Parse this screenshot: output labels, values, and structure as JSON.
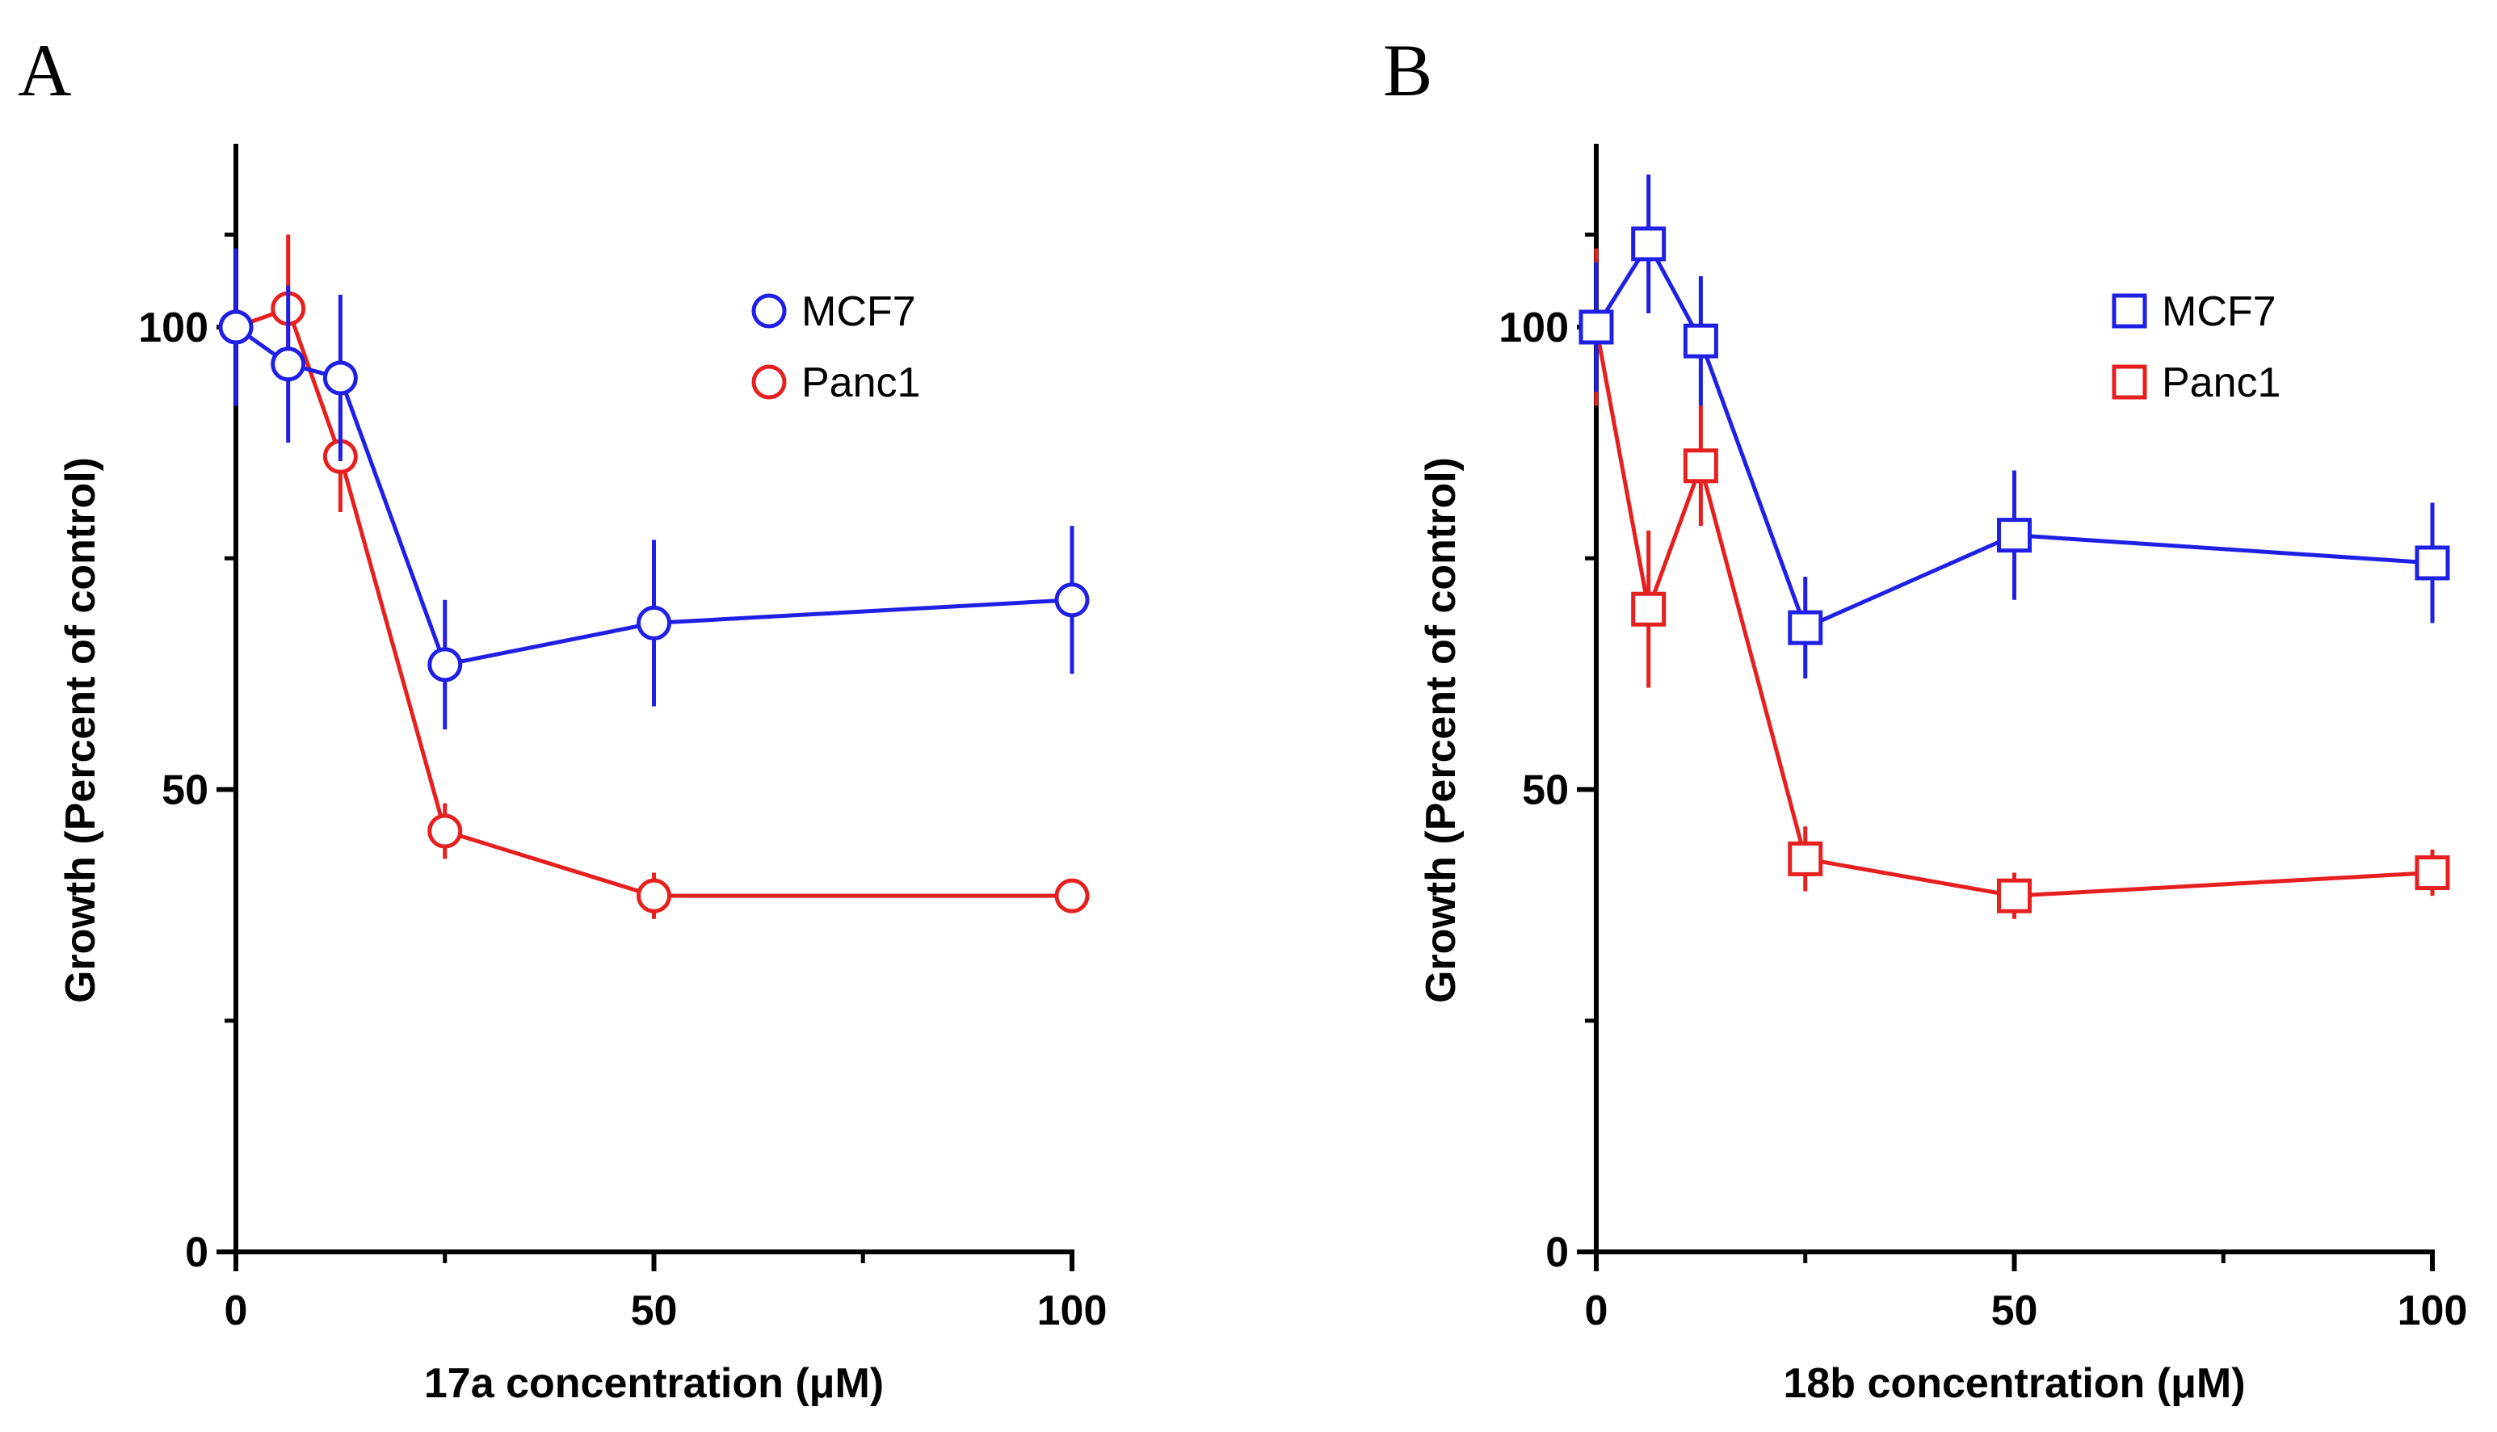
{
  "chart_data": [
    {
      "panel": "A",
      "type": "line",
      "marker": "circle",
      "xlabel": "17a concentration (μM)",
      "ylabel": "Growth (Percent of control)",
      "xlim": [
        0,
        100
      ],
      "ylim": [
        0,
        120
      ],
      "xticks": [
        0,
        50,
        100
      ],
      "yticks": [
        0,
        50,
        100
      ],
      "grid": false,
      "legend_position": "top-right",
      "series": [
        {
          "name": "MCF7",
          "color": "#1f1fe6",
          "x": [
            0,
            6.25,
            12.5,
            25,
            50,
            100
          ],
          "y": [
            100,
            96,
            94.5,
            63.5,
            68,
            70.5
          ],
          "error": [
            8.5,
            8.5,
            9,
            7,
            9,
            8
          ]
        },
        {
          "name": "Panc1",
          "color": "#e61f1f",
          "x": [
            0,
            6.25,
            12.5,
            25,
            50,
            100
          ],
          "y": [
            100,
            102,
            86,
            45.5,
            38.5,
            38.5
          ],
          "error": [
            6,
            8,
            6,
            3,
            2.5,
            1.5
          ]
        }
      ]
    },
    {
      "panel": "B",
      "type": "line",
      "marker": "square",
      "xlabel": "18b concentration (μM)",
      "ylabel": "Growth (Percent of control)",
      "xlim": [
        0,
        100
      ],
      "ylim": [
        0,
        120
      ],
      "xticks": [
        0,
        50,
        100
      ],
      "yticks": [
        0,
        50,
        100
      ],
      "grid": false,
      "legend_position": "top-right",
      "series": [
        {
          "name": "MCF7",
          "color": "#1f1fe6",
          "x": [
            0,
            6.25,
            12.5,
            25,
            50,
            100
          ],
          "y": [
            100,
            109,
            98.5,
            67.5,
            77.5,
            74.5
          ],
          "error": [
            7,
            7.5,
            7,
            5.5,
            7,
            6.5
          ]
        },
        {
          "name": "Panc1",
          "color": "#e61f1f",
          "x": [
            0,
            6.25,
            12.5,
            25,
            50,
            100
          ],
          "y": [
            100,
            69.5,
            85,
            42.5,
            38.5,
            41
          ],
          "error": [
            8.5,
            8.5,
            6.5,
            3.5,
            2.5,
            2.5
          ]
        }
      ]
    }
  ]
}
